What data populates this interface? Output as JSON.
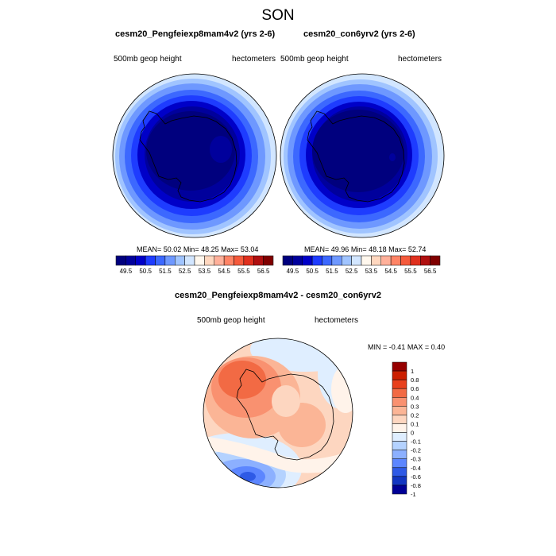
{
  "season": "SON",
  "panels": [
    {
      "name": "cesm20_Pengfeiexp8mam4v2 (yrs 2-6)",
      "variable": "500mb geop height",
      "units": "hectometers",
      "mean": "50.02",
      "min": "48.25",
      "max": "53.04",
      "interior_field": "deep-navy",
      "highlight": "lighter-blue blob near center"
    },
    {
      "name": "cesm20_con6yrv2 (yrs 2-6)",
      "variable": "500mb geop height",
      "units": "hectometers",
      "mean": "49.96",
      "min": "48.18",
      "max": "52.74",
      "interior_field": "deep-navy",
      "highlight": "small lighter spot near center"
    }
  ],
  "abs_colorbar": {
    "labels": [
      "49.5",
      "50.5",
      "51.5",
      "52.5",
      "53.5",
      "54.5",
      "55.5",
      "56.5"
    ],
    "colors": [
      "#00007e",
      "#00009c",
      "#0000c8",
      "#1e3cff",
      "#3c68ff",
      "#6e98ff",
      "#a0c4ff",
      "#d2e6ff",
      "#fff8ee",
      "#ffd7bf",
      "#ffb09a",
      "#ff8466",
      "#f55a3c",
      "#e0301e",
      "#b01010",
      "#800000"
    ]
  },
  "diff_panel": {
    "name": "cesm20_Pengfeiexp8mam4v2 - cesm20_con6yrv2",
    "variable": "500mb geop height",
    "units": "hectometers",
    "min_label": "MIN =",
    "min": "-0.41",
    "max_label": "MAX =",
    "max": "0.40",
    "colorbar_labels": [
      "1",
      "0.8",
      "0.6",
      "0.4",
      "0.3",
      "0.2",
      "0.1",
      "0",
      "-0.1",
      "-0.2",
      "-0.3",
      "-0.4",
      "-0.6",
      "-0.8",
      "-1"
    ],
    "colorbar_colors": [
      "#960000",
      "#cc1f00",
      "#e8401c",
      "#f26a44",
      "#f99170",
      "#fbb596",
      "#fdd6c0",
      "#fff3ea",
      "#dfeeff",
      "#b4d2ff",
      "#8cb0ff",
      "#5c86ff",
      "#2e5ae6",
      "#1236c2",
      "#000096"
    ]
  }
}
